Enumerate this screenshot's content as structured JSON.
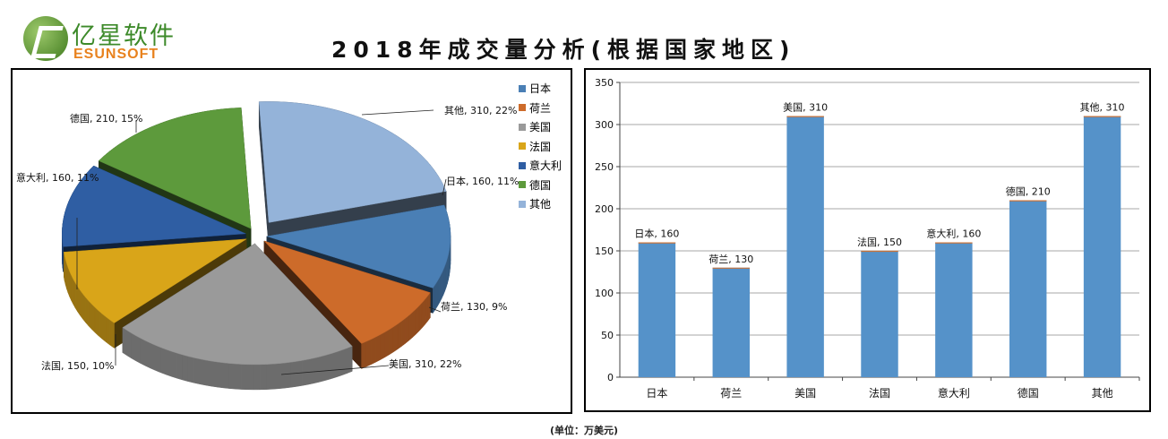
{
  "logo": {
    "cn": "亿星软件",
    "en": "ESUNSOFT"
  },
  "title": "2018年成交量分析(根据国家地区)",
  "unit_note": "(单位：万美元)",
  "colors": {
    "日本": "#4a7fb5",
    "荷兰": "#cd6b2a",
    "美国": "#9a9a9a",
    "法国": "#d9a519",
    "意大利": "#2f5ea3",
    "德国": "#5d9a3c",
    "其他": "#94b3d9",
    "bar": "#5592c9"
  },
  "chart_data": [
    {
      "type": "pie",
      "categories": [
        "日本",
        "荷兰",
        "美国",
        "法国",
        "意大利",
        "德国",
        "其他"
      ],
      "values": [
        160,
        130,
        310,
        150,
        160,
        210,
        310
      ],
      "percents": [
        "11%",
        "9%",
        "22%",
        "10%",
        "11%",
        "15%",
        "22%"
      ],
      "labels": [
        "日本, 160, 11%",
        "荷兰, 130, 9%",
        "美国, 310, 22%",
        "法国, 150, 10%",
        "意大利, 160, 11%",
        "德国, 210, 15%",
        "其他, 310, 22%"
      ],
      "legend_placement": "right"
    },
    {
      "type": "bar",
      "categories": [
        "日本",
        "荷兰",
        "美国",
        "法国",
        "意大利",
        "德国",
        "其他"
      ],
      "values": [
        160,
        130,
        310,
        150,
        160,
        210,
        310
      ],
      "data_labels": [
        "日本, 160",
        "荷兰, 130",
        "美国, 310",
        "法国, 150",
        "意大利, 160",
        "德国, 210",
        "其他, 310"
      ],
      "ylim": [
        0,
        350
      ],
      "yticks": [
        0,
        50,
        100,
        150,
        200,
        250,
        300,
        350
      ],
      "grid": true,
      "xlabel": "",
      "ylabel": ""
    }
  ]
}
